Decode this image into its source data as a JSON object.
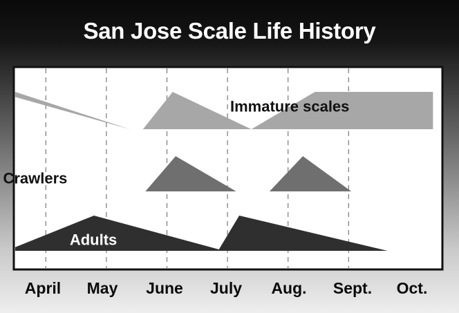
{
  "chart_data": {
    "type": "area",
    "title": "San Jose Scale Life History",
    "categories": [
      "April",
      "May",
      "June",
      "July",
      "Aug.",
      "Sept.",
      "Oct."
    ],
    "xlim": [
      0,
      6.9
    ],
    "ylabel": "",
    "xlabel": "",
    "grid": "vertical-dashed",
    "colors": {
      "immature": "#a7a7a7",
      "crawlers": "#6f6f6f",
      "adults": "#2f2f2f"
    },
    "series": [
      {
        "name": "Immature scales",
        "key": "immature",
        "label_color": "#111111",
        "label_at": [
          3.55,
          0.62
        ],
        "segments": [
          [
            [
              -0.3,
              1.0
            ],
            [
              0.0,
              1.0
            ],
            [
              1.89,
              0.0
            ]
          ],
          [
            [
              2.11,
              0.0
            ],
            [
              2.6,
              1.0
            ],
            [
              3.9,
              0.0
            ]
          ],
          [
            [
              3.9,
              0.0
            ],
            [
              4.95,
              1.0
            ],
            [
              6.9,
              1.0
            ],
            [
              6.9,
              0.0
            ]
          ]
        ]
      },
      {
        "name": "Crawlers",
        "key": "crawlers",
        "label_color": "#111111",
        "label_at": [
          -0.2,
          0.38
        ],
        "segments": [
          [
            [
              2.15,
              0.0
            ],
            [
              2.65,
              1.0
            ],
            [
              3.65,
              0.0
            ]
          ],
          [
            [
              4.2,
              0.0
            ],
            [
              4.75,
              1.0
            ],
            [
              5.55,
              0.0
            ]
          ]
        ]
      },
      {
        "name": "Adults",
        "key": "adults",
        "label_color": "#ffffff",
        "label_at": [
          0.9,
          0.32
        ],
        "segments": [
          [
            [
              -0.15,
              0.0
            ],
            [
              1.3,
              1.0
            ],
            [
              3.45,
              0.0
            ]
          ],
          [
            [
              3.35,
              0.0
            ],
            [
              3.7,
              1.0
            ],
            [
              6.15,
              0.0
            ]
          ]
        ]
      }
    ]
  }
}
